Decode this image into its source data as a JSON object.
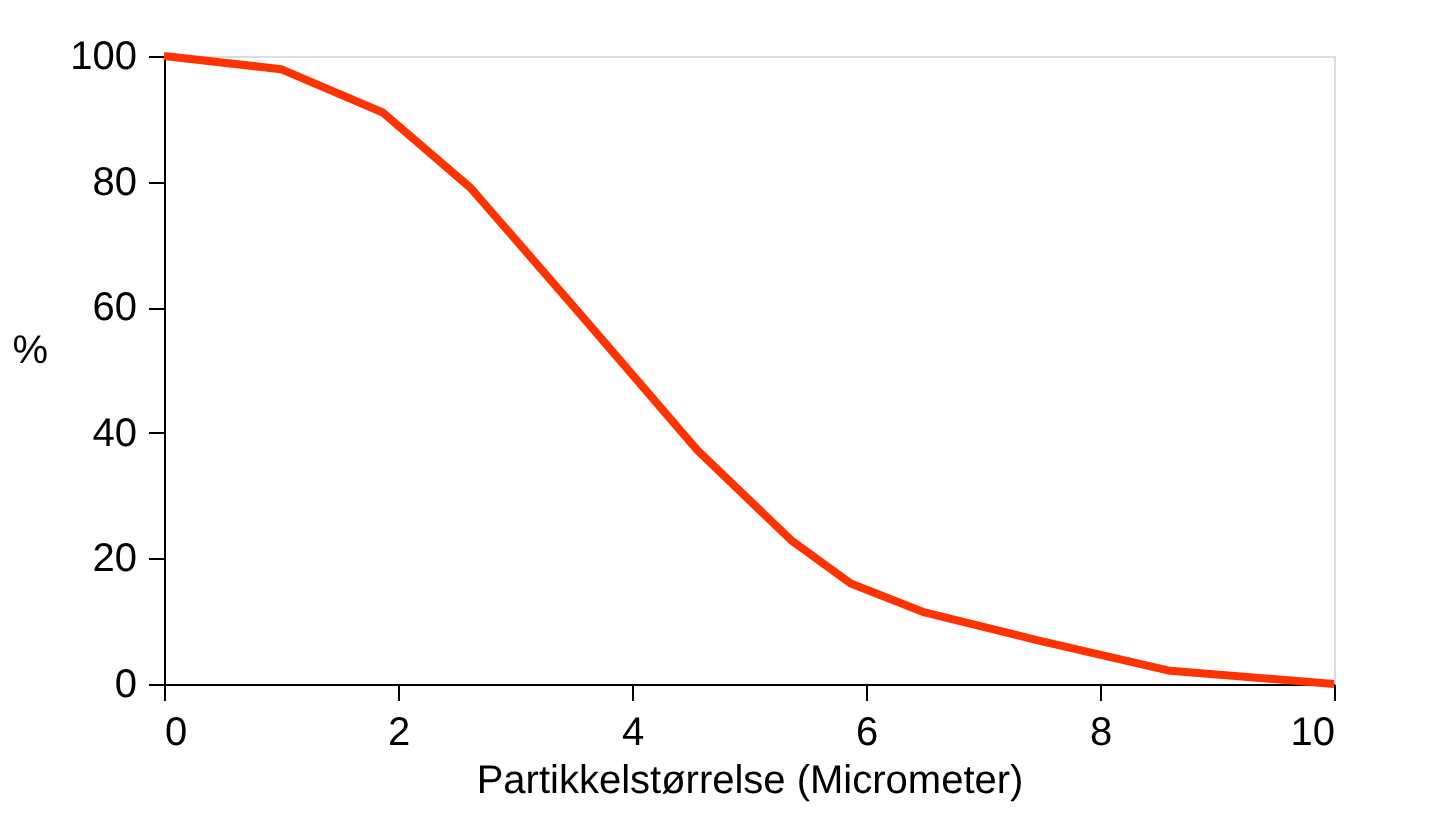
{
  "chart_data": {
    "type": "line",
    "xlabel": "Partikkelstørrelse (Micrometer)",
    "ylabel": "%",
    "x": [
      0,
      1.0,
      1.87,
      2.62,
      3.6,
      4.56,
      5.36,
      5.87,
      6.5,
      7.46,
      8.6,
      10
    ],
    "series": [
      {
        "color": "#ff3300",
        "values": [
          100,
          97.9,
          91,
          79,
          58,
          37.2,
          22.9,
          16,
          11.4,
          7,
          2.1,
          0
        ]
      }
    ],
    "xlim": [
      0,
      10
    ],
    "xticks": [
      0,
      2,
      4,
      6,
      8,
      10
    ],
    "ylim": [
      0,
      100
    ],
    "yticks": [
      0,
      20,
      40,
      60,
      80,
      100
    ],
    "grid": false,
    "marker": "none",
    "line_style": "solid"
  }
}
